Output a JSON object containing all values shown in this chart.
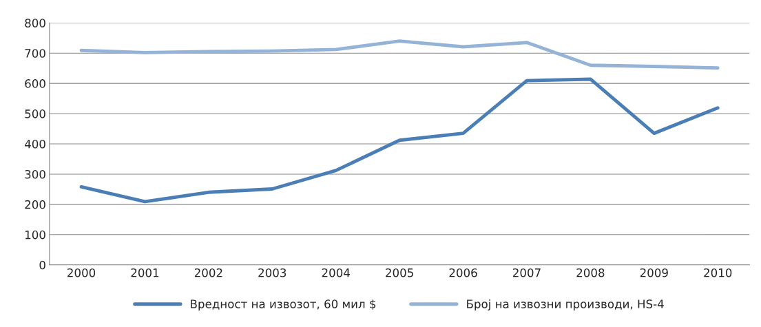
{
  "chart_data": {
    "type": "line",
    "categories": [
      "2000",
      "2001",
      "2002",
      "2003",
      "2004",
      "2005",
      "2006",
      "2007",
      "2008",
      "2009",
      "2010"
    ],
    "series": [
      {
        "name": "Вредност на извозот, 60 мил $",
        "color": "#4a7eb4",
        "values": [
          258,
          209,
          240,
          251,
          312,
          412,
          435,
          609,
          614,
          435,
          519
        ]
      },
      {
        "name": "Број на извозни производи, HS-4",
        "color": "#95b3d7",
        "values": [
          709,
          702,
          705,
          707,
          712,
          740,
          721,
          735,
          660,
          656,
          651
        ]
      }
    ],
    "ylim": [
      0,
      800
    ],
    "yticks": [
      0,
      100,
      200,
      300,
      400,
      500,
      600,
      700,
      800
    ],
    "grid": "y",
    "legend": "bottom",
    "line_style": "solid",
    "marker": "none"
  }
}
